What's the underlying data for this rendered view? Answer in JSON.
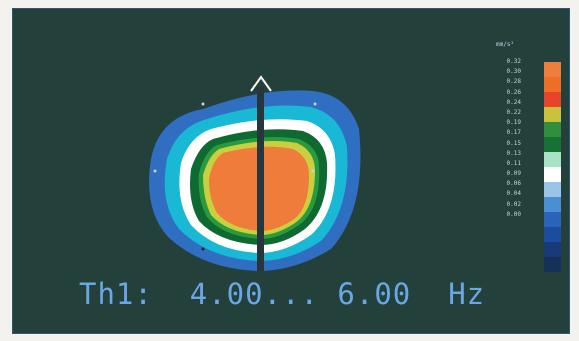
{
  "display": {
    "band_label": "Th1:  4.00... 6.00  Hz"
  },
  "color_scale": {
    "unit": "mm/s²",
    "values": [
      "0.32",
      "0.30",
      "0.28",
      "0.26",
      "0.24",
      "0.22",
      "0.19",
      "0.17",
      "0.15",
      "0.13",
      "0.11",
      "0.09",
      "0.06",
      "0.04",
      "0.02",
      "0.00"
    ],
    "colors": [
      "#ef7e3c",
      "#ee6e27",
      "#e7452a",
      "#c8c23c",
      "#2f8f3c",
      "#157234",
      "#a9e3c6",
      "#ffffff",
      "#9cc4e8",
      "#4b8fd3",
      "#2a63ba",
      "#1b4c9d",
      "#1a3978",
      "#163058"
    ]
  },
  "map": {
    "region_colors": {
      "outer": "#2f6ec0",
      "cyan": "#19b8d4",
      "white": "#ffffff",
      "green_dark": "#0f6a32",
      "green": "#2a9a3e",
      "lime": "#c9cf3d",
      "core": "#ef7c3a",
      "divider": "#26363a"
    }
  }
}
